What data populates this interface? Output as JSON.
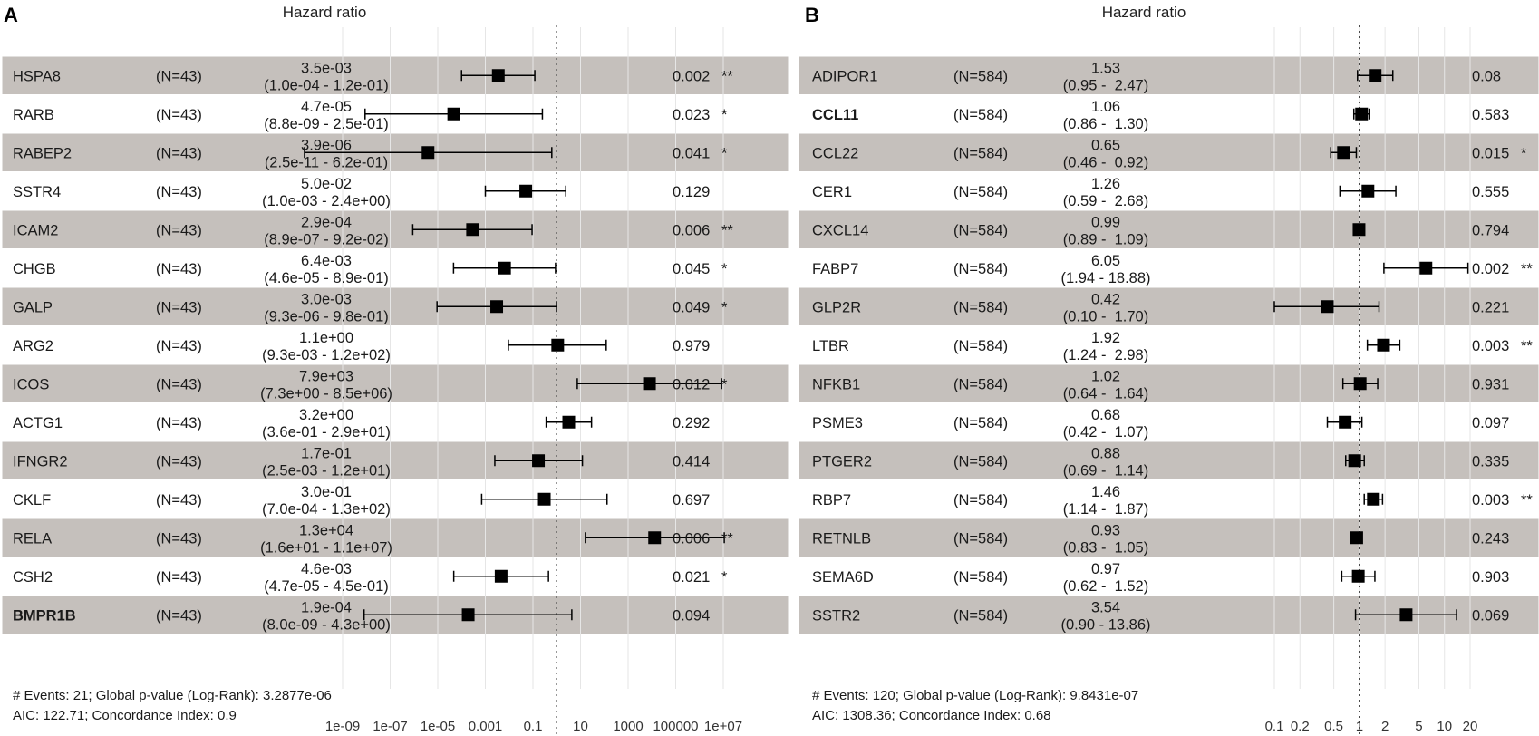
{
  "chart_data": [
    {
      "type": "forest",
      "panel": "A",
      "title": "Hazard ratio",
      "scale": "log10",
      "xlim": [
        1e-09,
        10000000.0
      ],
      "tick_values": [
        1e-09,
        1e-07,
        1e-05,
        0.001,
        0.1,
        10,
        1000,
        100000,
        10000000.0
      ],
      "tick_labels": [
        "1e-09",
        "1e-07",
        "1e-05",
        "0.001",
        "0.1",
        "10",
        "1000",
        "100000",
        "1e+07"
      ],
      "reference_line": 1,
      "rows": [
        {
          "gene": "HSPA8",
          "n": "(N=43)",
          "hr_text": "3.5e-03",
          "ci_text": "(1.0e-04 - 1.2e-01)",
          "hr": 0.0035,
          "lo": 0.0001,
          "hi": 0.12,
          "p": "0.002",
          "stars": "**",
          "bold": false
        },
        {
          "gene": "RARB",
          "n": "(N=43)",
          "hr_text": "4.7e-05",
          "ci_text": "(8.8e-09 - 2.5e-01)",
          "hr": 4.7e-05,
          "lo": 8.8e-09,
          "hi": 0.25,
          "p": "0.023",
          "stars": "*",
          "bold": false
        },
        {
          "gene": "RABEP2",
          "n": "(N=43)",
          "hr_text": "3.9e-06",
          "ci_text": "(2.5e-11 - 6.2e-01)",
          "hr": 3.9e-06,
          "lo": 2.5e-11,
          "hi": 0.62,
          "p": "0.041",
          "stars": "*",
          "bold": false
        },
        {
          "gene": "SSTR4",
          "n": "(N=43)",
          "hr_text": "5.0e-02",
          "ci_text": "(1.0e-03 - 2.4e+00)",
          "hr": 0.05,
          "lo": 0.001,
          "hi": 2.4,
          "p": "0.129",
          "stars": "",
          "bold": false
        },
        {
          "gene": "ICAM2",
          "n": "(N=43)",
          "hr_text": "2.9e-04",
          "ci_text": "(8.9e-07 - 9.2e-02)",
          "hr": 0.00029,
          "lo": 8.9e-07,
          "hi": 0.092,
          "p": "0.006",
          "stars": "**",
          "bold": false
        },
        {
          "gene": "CHGB",
          "n": "(N=43)",
          "hr_text": "6.4e-03",
          "ci_text": "(4.6e-05 - 8.9e-01)",
          "hr": 0.0064,
          "lo": 4.6e-05,
          "hi": 0.89,
          "p": "0.045",
          "stars": "*",
          "bold": false
        },
        {
          "gene": "GALP",
          "n": "(N=43)",
          "hr_text": "3.0e-03",
          "ci_text": "(9.3e-06 - 9.8e-01)",
          "hr": 0.003,
          "lo": 9.3e-06,
          "hi": 0.98,
          "p": "0.049",
          "stars": "*",
          "bold": false
        },
        {
          "gene": "ARG2",
          "n": "(N=43)",
          "hr_text": "1.1e+00",
          "ci_text": "(9.3e-03 - 1.2e+02)",
          "hr": 1.1,
          "lo": 0.0093,
          "hi": 120,
          "p": "0.979",
          "stars": "",
          "bold": false
        },
        {
          "gene": "ICOS",
          "n": "(N=43)",
          "hr_text": "7.9e+03",
          "ci_text": "(7.3e+00 - 8.5e+06)",
          "hr": 7900,
          "lo": 7.3,
          "hi": 8500000,
          "p": "0.012",
          "stars": "*",
          "bold": false
        },
        {
          "gene": "ACTG1",
          "n": "(N=43)",
          "hr_text": "3.2e+00",
          "ci_text": "(3.6e-01 - 2.9e+01)",
          "hr": 3.2,
          "lo": 0.36,
          "hi": 29,
          "p": "0.292",
          "stars": "",
          "bold": false
        },
        {
          "gene": "IFNGR2",
          "n": "(N=43)",
          "hr_text": "1.7e-01",
          "ci_text": "(2.5e-03 - 1.2e+01)",
          "hr": 0.17,
          "lo": 0.0025,
          "hi": 12,
          "p": "0.414",
          "stars": "",
          "bold": false
        },
        {
          "gene": "CKLF",
          "n": "(N=43)",
          "hr_text": "3.0e-01",
          "ci_text": "(7.0e-04 - 1.3e+02)",
          "hr": 0.3,
          "lo": 0.0007,
          "hi": 130,
          "p": "0.697",
          "stars": "",
          "bold": false
        },
        {
          "gene": "RELA",
          "n": "(N=43)",
          "hr_text": "1.3e+04",
          "ci_text": "(1.6e+01 - 1.1e+07)",
          "hr": 13000,
          "lo": 16,
          "hi": 11000000,
          "p": "0.006",
          "stars": "**",
          "bold": false
        },
        {
          "gene": "CSH2",
          "n": "(N=43)",
          "hr_text": "4.6e-03",
          "ci_text": "(4.7e-05 - 4.5e-01)",
          "hr": 0.0046,
          "lo": 4.7e-05,
          "hi": 0.45,
          "p": "0.021",
          "stars": "*",
          "bold": false
        },
        {
          "gene": "BMPR1B",
          "n": "(N=43)",
          "hr_text": "1.9e-04",
          "ci_text": "(8.0e-09 - 4.3e+00)",
          "hr": 0.00019,
          "lo": 8e-09,
          "hi": 4.3,
          "p": "0.094",
          "stars": "",
          "bold": true
        }
      ],
      "footer": [
        "# Events: 21; Global p-value (Log-Rank): 3.2877e-06",
        "AIC: 122.71; Concordance Index: 0.9"
      ]
    },
    {
      "type": "forest",
      "panel": "B",
      "title": "Hazard ratio",
      "scale": "log10",
      "xlim": [
        0.1,
        20
      ],
      "tick_values": [
        0.1,
        0.2,
        0.5,
        1,
        2,
        5,
        10,
        20
      ],
      "tick_labels": [
        "0.1",
        "0.2",
        "0.5",
        "1",
        "2",
        "5",
        "10",
        "20"
      ],
      "reference_line": 1,
      "rows": [
        {
          "gene": "ADIPOR1",
          "n": "(N=584)",
          "hr_text": "1.53",
          "ci_text": "(0.95 -  2.47)",
          "hr": 1.53,
          "lo": 0.95,
          "hi": 2.47,
          "p": "0.08",
          "stars": "",
          "bold": false
        },
        {
          "gene": "CCL11",
          "n": "(N=584)",
          "hr_text": "1.06",
          "ci_text": "(0.86 -  1.30)",
          "hr": 1.06,
          "lo": 0.86,
          "hi": 1.3,
          "p": "0.583",
          "stars": "",
          "bold": true
        },
        {
          "gene": "CCL22",
          "n": "(N=584)",
          "hr_text": "0.65",
          "ci_text": "(0.46 -  0.92)",
          "hr": 0.65,
          "lo": 0.46,
          "hi": 0.92,
          "p": "0.015",
          "stars": "*",
          "bold": false
        },
        {
          "gene": "CER1",
          "n": "(N=584)",
          "hr_text": "1.26",
          "ci_text": "(0.59 -  2.68)",
          "hr": 1.26,
          "lo": 0.59,
          "hi": 2.68,
          "p": "0.555",
          "stars": "",
          "bold": false
        },
        {
          "gene": "CXCL14",
          "n": "(N=584)",
          "hr_text": "0.99",
          "ci_text": "(0.89 -  1.09)",
          "hr": 0.99,
          "lo": 0.89,
          "hi": 1.09,
          "p": "0.794",
          "stars": "",
          "bold": false
        },
        {
          "gene": "FABP7",
          "n": "(N=584)",
          "hr_text": "6.05",
          "ci_text": "(1.94 - 18.88)",
          "hr": 6.05,
          "lo": 1.94,
          "hi": 18.88,
          "p": "0.002",
          "stars": "**",
          "bold": false
        },
        {
          "gene": "GLP2R",
          "n": "(N=584)",
          "hr_text": "0.42",
          "ci_text": "(0.10 -  1.70)",
          "hr": 0.42,
          "lo": 0.1,
          "hi": 1.7,
          "p": "0.221",
          "stars": "",
          "bold": false
        },
        {
          "gene": "LTBR",
          "n": "(N=584)",
          "hr_text": "1.92",
          "ci_text": "(1.24 -  2.98)",
          "hr": 1.92,
          "lo": 1.24,
          "hi": 2.98,
          "p": "0.003",
          "stars": "**",
          "bold": false
        },
        {
          "gene": "NFKB1",
          "n": "(N=584)",
          "hr_text": "1.02",
          "ci_text": "(0.64 -  1.64)",
          "hr": 1.02,
          "lo": 0.64,
          "hi": 1.64,
          "p": "0.931",
          "stars": "",
          "bold": false
        },
        {
          "gene": "PSME3",
          "n": "(N=584)",
          "hr_text": "0.68",
          "ci_text": "(0.42 -  1.07)",
          "hr": 0.68,
          "lo": 0.42,
          "hi": 1.07,
          "p": "0.097",
          "stars": "",
          "bold": false
        },
        {
          "gene": "PTGER2",
          "n": "(N=584)",
          "hr_text": "0.88",
          "ci_text": "(0.69 -  1.14)",
          "hr": 0.88,
          "lo": 0.69,
          "hi": 1.14,
          "p": "0.335",
          "stars": "",
          "bold": false
        },
        {
          "gene": "RBP7",
          "n": "(N=584)",
          "hr_text": "1.46",
          "ci_text": "(1.14 -  1.87)",
          "hr": 1.46,
          "lo": 1.14,
          "hi": 1.87,
          "p": "0.003",
          "stars": "**",
          "bold": false
        },
        {
          "gene": "RETNLB",
          "n": "(N=584)",
          "hr_text": "0.93",
          "ci_text": "(0.83 -  1.05)",
          "hr": 0.93,
          "lo": 0.83,
          "hi": 1.05,
          "p": "0.243",
          "stars": "",
          "bold": false
        },
        {
          "gene": "SEMA6D",
          "n": "(N=584)",
          "hr_text": "0.97",
          "ci_text": "(0.62 -  1.52)",
          "hr": 0.97,
          "lo": 0.62,
          "hi": 1.52,
          "p": "0.903",
          "stars": "",
          "bold": false
        },
        {
          "gene": "SSTR2",
          "n": "(N=584)",
          "hr_text": "3.54",
          "ci_text": "(0.90 - 13.86)",
          "hr": 3.54,
          "lo": 0.9,
          "hi": 13.86,
          "p": "0.069",
          "stars": "",
          "bold": false
        }
      ],
      "footer": [
        "# Events: 120; Global p-value (Log-Rank): 9.8431e-07",
        "AIC: 1308.36; Concordance Index: 0.68"
      ]
    }
  ],
  "colors": {
    "row_shade": "#c5c0bc",
    "row_border": "#ffffff",
    "grid": "#e6e6e6",
    "mark": "#000000",
    "text": "#1a1a1a"
  }
}
